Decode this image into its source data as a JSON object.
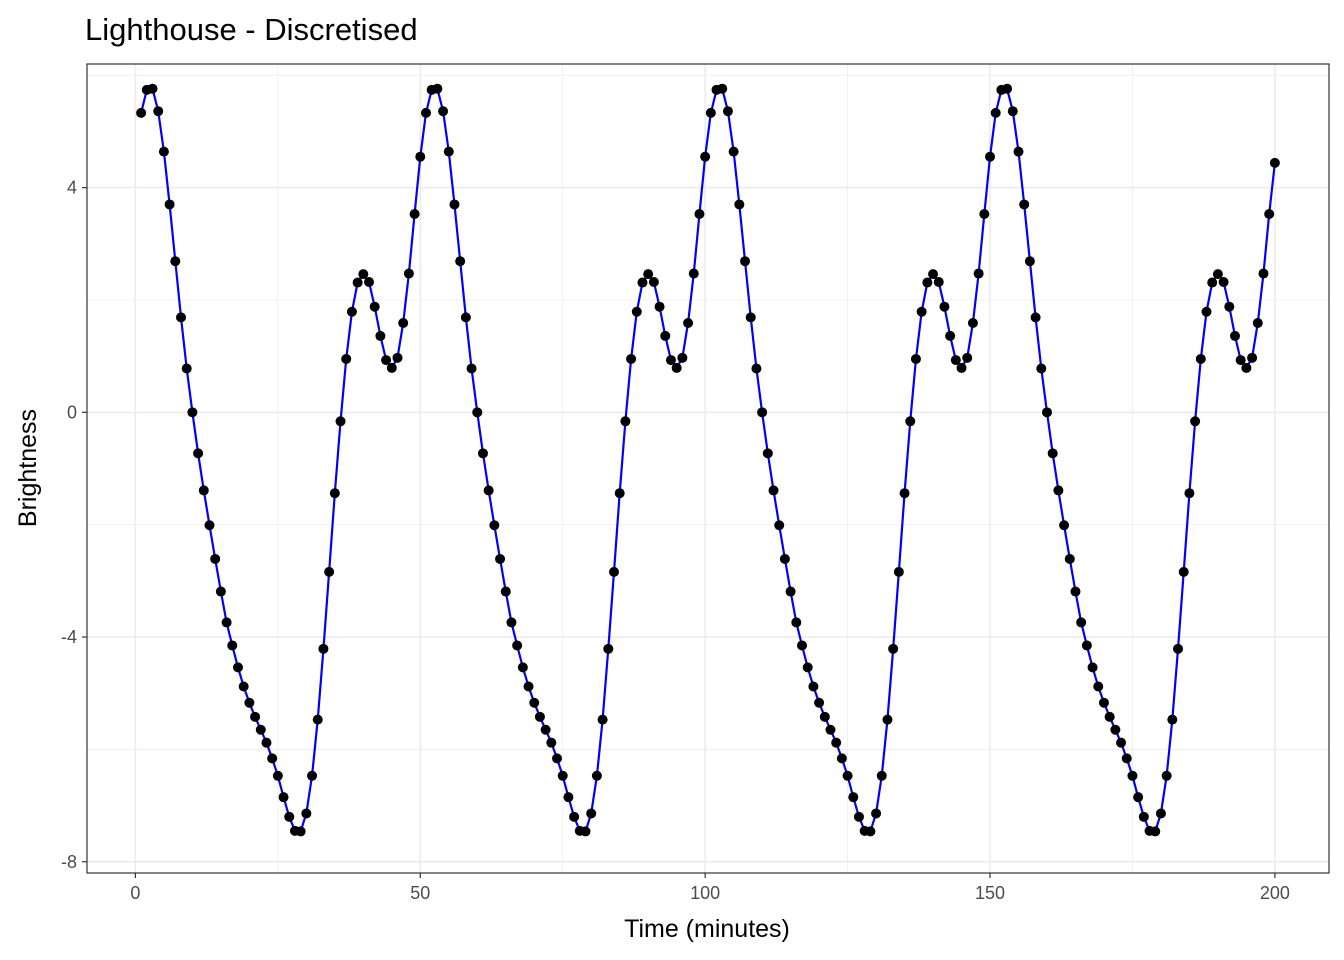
{
  "chart_data": {
    "type": "line",
    "title": "Lighthouse - Discretised",
    "xlabel": "Time (minutes)",
    "ylabel": "Brightness",
    "xlim": [
      -8.5,
      209.5
    ],
    "ylim": [
      -8.2,
      6.2
    ],
    "x_ticks": [
      0,
      50,
      100,
      150,
      200
    ],
    "x_tick_labels": [
      "0",
      "50",
      "100",
      "150",
      "200"
    ],
    "y_ticks": [
      -8,
      -4,
      0,
      4
    ],
    "y_tick_labels": [
      "-8",
      "-4",
      "0",
      "4"
    ],
    "grid": true,
    "legend": "none",
    "colors": {
      "line": "#0000ff",
      "points": "#000000",
      "grid": "#ebebeb",
      "panel_border": "#333333"
    },
    "x": [
      1,
      2,
      3,
      4,
      5,
      6,
      7,
      8,
      9,
      10,
      11,
      12,
      13,
      14,
      15,
      16,
      17,
      18,
      19,
      20,
      21,
      22,
      23,
      24,
      25,
      26,
      27,
      28,
      29,
      30,
      31,
      32,
      33,
      34,
      35,
      36,
      37,
      38,
      39,
      40,
      41,
      42,
      43,
      44,
      45,
      46,
      47,
      48,
      49,
      50,
      51,
      52,
      53,
      54,
      55,
      56,
      57,
      58,
      59,
      60,
      61,
      62,
      63,
      64,
      65,
      66,
      67,
      68,
      69,
      70,
      71,
      72,
      73,
      74,
      75,
      76,
      77,
      78,
      79,
      80,
      81,
      82,
      83,
      84,
      85,
      86,
      87,
      88,
      89,
      90,
      91,
      92,
      93,
      94,
      95,
      96,
      97,
      98,
      99,
      100,
      101,
      102,
      103,
      104,
      105,
      106,
      107,
      108,
      109,
      110,
      111,
      112,
      113,
      114,
      115,
      116,
      117,
      118,
      119,
      120,
      121,
      122,
      123,
      124,
      125,
      126,
      127,
      128,
      129,
      130,
      131,
      132,
      133,
      134,
      135,
      136,
      137,
      138,
      139,
      140,
      141,
      142,
      143,
      144,
      145,
      146,
      147,
      148,
      149,
      150,
      151,
      152,
      153,
      154,
      155,
      156,
      157,
      158,
      159,
      160,
      161,
      162,
      163,
      164,
      165,
      166,
      167,
      168,
      169,
      170,
      171,
      172,
      173,
      174,
      175,
      176,
      177,
      178,
      179,
      180,
      181,
      182,
      183,
      184,
      185,
      186,
      187,
      188,
      189,
      190,
      191,
      192,
      193,
      194,
      195,
      196,
      197,
      198,
      199,
      200
    ],
    "series": [
      {
        "values": [
          5.33,
          5.74,
          5.76,
          5.36,
          4.64,
          3.7,
          2.69,
          1.69,
          0.78,
          0.0,
          -0.73,
          -1.39,
          -2.01,
          -2.61,
          -3.19,
          -3.74,
          -4.15,
          -4.54,
          -4.88,
          -5.17,
          -5.42,
          -5.65,
          -5.88,
          -6.16,
          -6.47,
          -6.85,
          -7.2,
          -7.45,
          -7.46,
          -7.14,
          -6.47,
          -5.47,
          -4.21,
          -2.84,
          -1.44,
          -0.16,
          0.95,
          1.79,
          2.31,
          2.46,
          2.32,
          1.88,
          1.36,
          0.93,
          0.79,
          0.97,
          1.59,
          2.47,
          3.53,
          4.55,
          5.33,
          5.74,
          5.76,
          5.36,
          4.64,
          3.7,
          2.69,
          1.69,
          0.78,
          0.0,
          -0.73,
          -1.39,
          -2.01,
          -2.61,
          -3.19,
          -3.74,
          -4.15,
          -4.54,
          -4.88,
          -5.17,
          -5.42,
          -5.65,
          -5.88,
          -6.16,
          -6.47,
          -6.85,
          -7.2,
          -7.45,
          -7.46,
          -7.14,
          -6.47,
          -5.47,
          -4.21,
          -2.84,
          -1.44,
          -0.16,
          0.95,
          1.79,
          2.31,
          2.46,
          2.32,
          1.88,
          1.36,
          0.93,
          0.79,
          0.97,
          1.59,
          2.47,
          3.53,
          4.55,
          5.33,
          5.74,
          5.76,
          5.36,
          4.64,
          3.7,
          2.69,
          1.69,
          0.78,
          0.0,
          -0.73,
          -1.39,
          -2.01,
          -2.61,
          -3.19,
          -3.74,
          -4.15,
          -4.54,
          -4.88,
          -5.17,
          -5.42,
          -5.65,
          -5.88,
          -6.16,
          -6.47,
          -6.85,
          -7.2,
          -7.45,
          -7.46,
          -7.14,
          -6.47,
          -5.47,
          -4.21,
          -2.84,
          -1.44,
          -0.16,
          0.95,
          1.79,
          2.31,
          2.46,
          2.32,
          1.88,
          1.36,
          0.93,
          0.79,
          0.97,
          1.59,
          2.47,
          3.53,
          4.55,
          5.33,
          5.74,
          5.76,
          5.36,
          4.64,
          3.7,
          2.69,
          1.69,
          0.78,
          0.0,
          -0.73,
          -1.39,
          -2.01,
          -2.61,
          -3.19,
          -3.74,
          -4.15,
          -4.54,
          -4.88,
          -5.17,
          -5.42,
          -5.65,
          -5.88,
          -6.16,
          -6.47,
          -6.85,
          -7.2,
          -7.45,
          -7.46,
          -7.14,
          -6.47,
          -5.47,
          -4.21,
          -2.84,
          -1.44,
          -0.16,
          0.95,
          1.79,
          2.31,
          2.46,
          2.32,
          1.88,
          1.36,
          0.93,
          0.79,
          0.97,
          1.59,
          2.47,
          3.53,
          4.44
        ]
      }
    ]
  }
}
